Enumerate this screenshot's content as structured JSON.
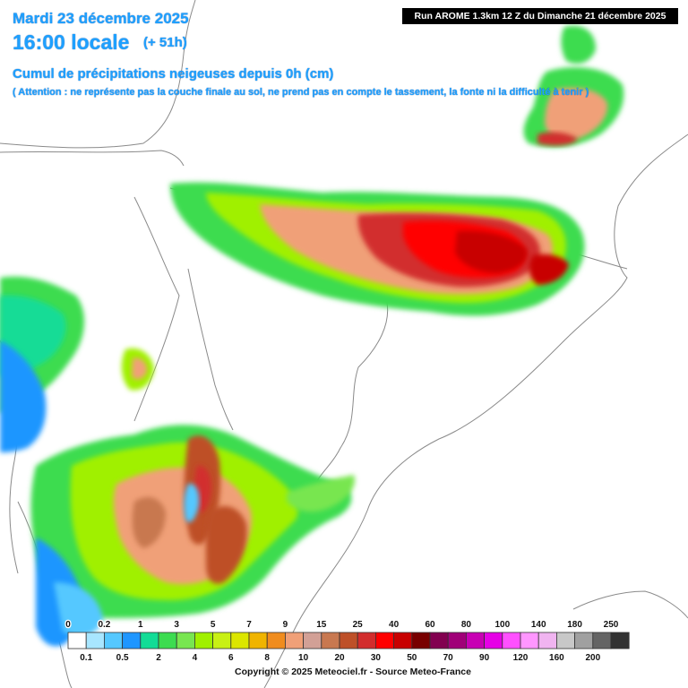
{
  "header": {
    "date": "Mardi 23 décembre 2025",
    "time": "16:00 locale",
    "offset": "(+ 51h)",
    "subtitle": "Cumul de précipitations neigeuses depuis 0h (cm)",
    "warning": "( Attention : ne représente pas la couche finale au sol, ne prend pas en compte le tassement, la fonte ni la difficulté à tenir )"
  },
  "run_label": "Run AROME 1.3km 12 Z du Dimanche 21 décembre 2025",
  "legend": {
    "top_labels": [
      "0",
      "0.2",
      "1",
      "3",
      "5",
      "7",
      "9",
      "15",
      "25",
      "40",
      "60",
      "80",
      "100",
      "140",
      "180",
      "250"
    ],
    "bottom_labels": [
      "0.1",
      "0.5",
      "2",
      "4",
      "6",
      "8",
      "10",
      "20",
      "30",
      "50",
      "70",
      "90",
      "120",
      "160",
      "200"
    ],
    "colors": [
      "#ffffff",
      "#a8e6ff",
      "#55c8ff",
      "#1e96ff",
      "#12dc96",
      "#3cdc50",
      "#78e650",
      "#a0f000",
      "#c8f014",
      "#dce600",
      "#f0b400",
      "#f08c1e",
      "#f0a078",
      "#d2a096",
      "#c87850",
      "#be5028",
      "#d22d2d",
      "#ff0000",
      "#c80000",
      "#780000",
      "#820050",
      "#a00078",
      "#c800b4",
      "#e600e6",
      "#ff50ff",
      "#ff96ff",
      "#f0b4f0",
      "#c8c8c8",
      "#a0a0a0",
      "#646464",
      "#323232"
    ]
  },
  "map": {
    "features": [
      "coastline",
      "borders",
      "pyrenees-snow-band",
      "iberian-system-snow",
      "cantabrian-snow",
      "alps-massif-central-snow"
    ]
  },
  "copyright": "Copyright © 2025 Meteociel.fr - Source Meteo-France"
}
